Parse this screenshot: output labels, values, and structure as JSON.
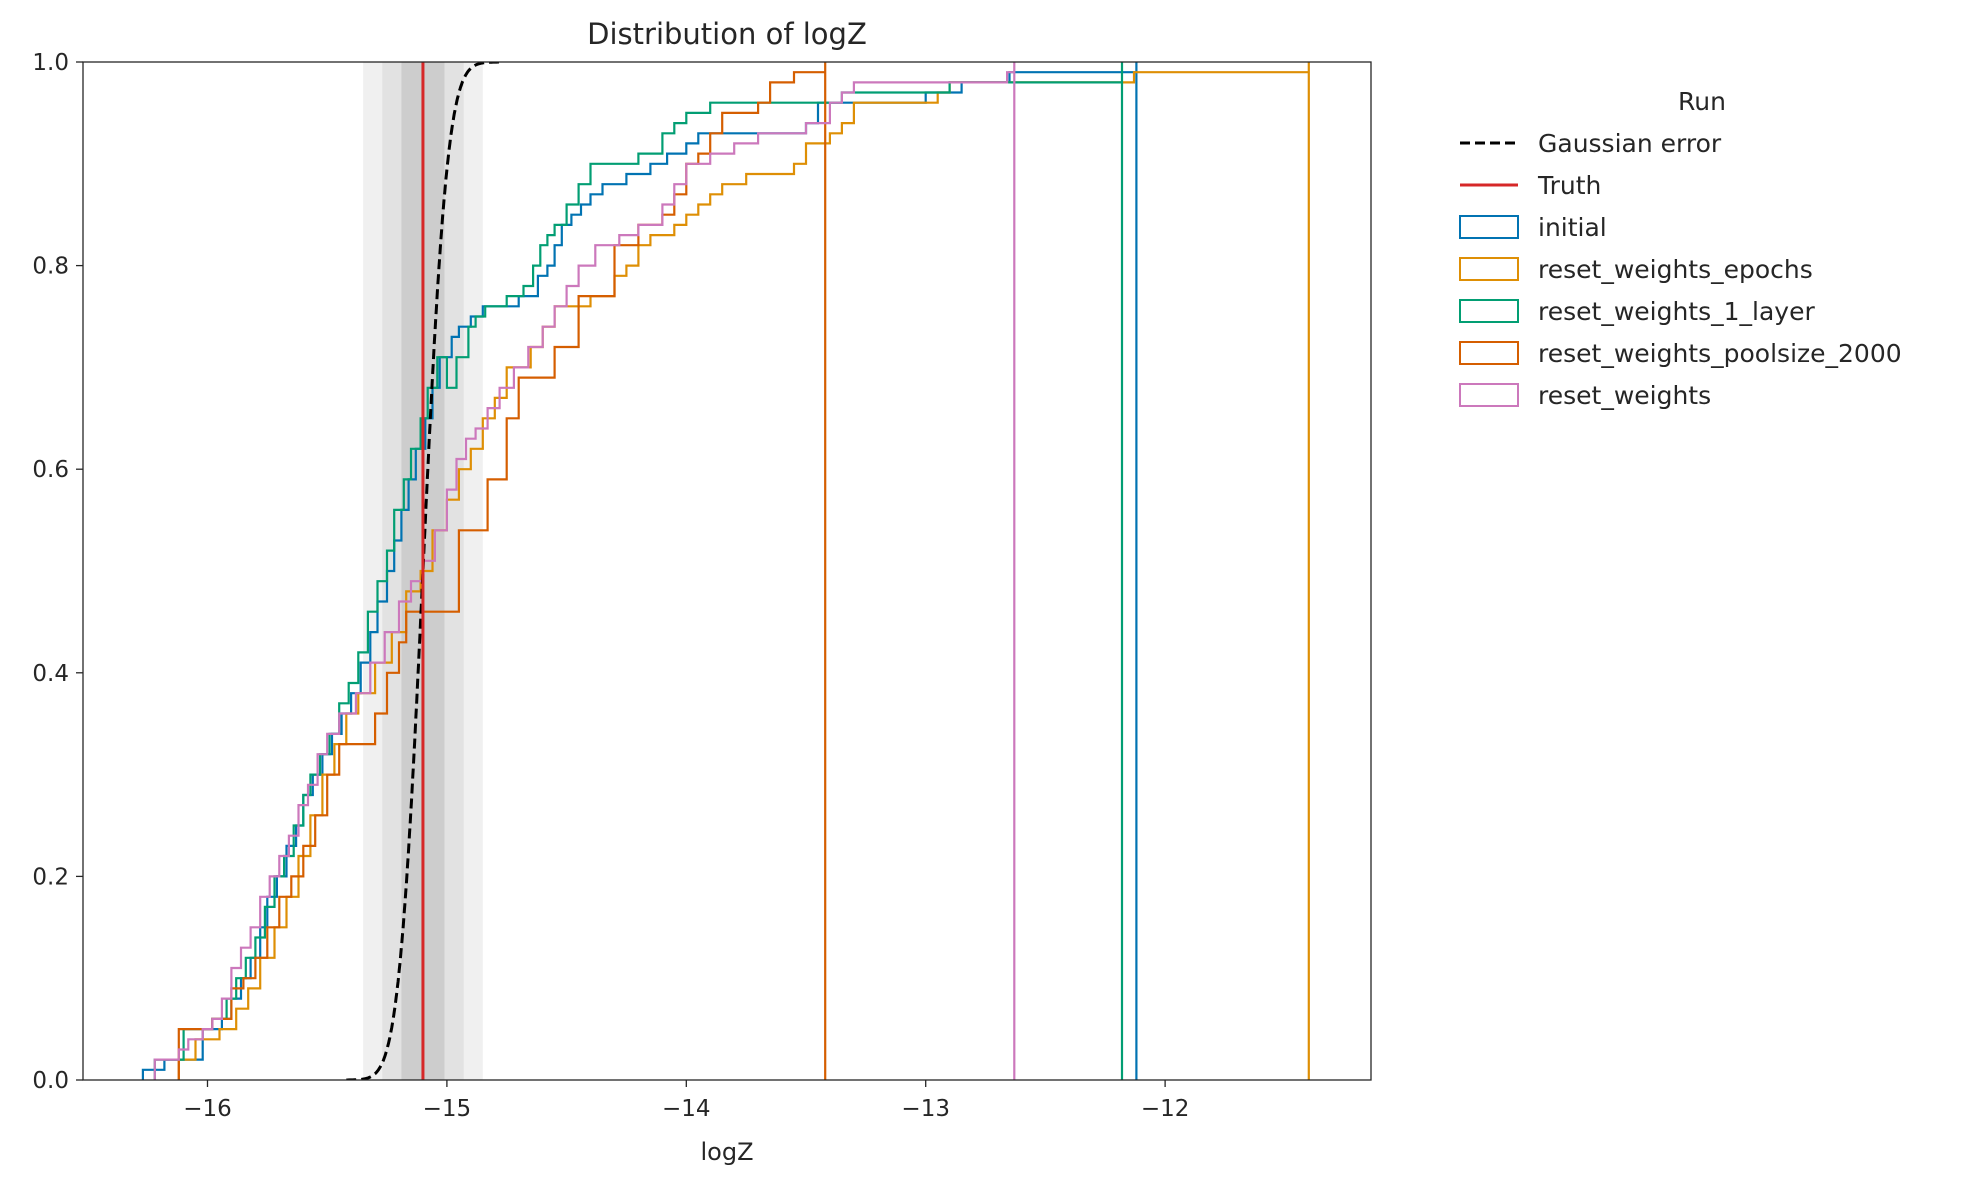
{
  "chart_data": {
    "type": "ecdf",
    "title": "Distribution of logZ",
    "xlabel": "logZ",
    "ylabel": "",
    "xlim": [
      -16.52,
      -11.14
    ],
    "ylim": [
      0.0,
      1.0
    ],
    "x_ticks": [
      -16,
      -15,
      -14,
      -13,
      -12
    ],
    "x_tick_labels": [
      "−16",
      "−15",
      "−14",
      "−13",
      "−12"
    ],
    "y_ticks": [
      0.0,
      0.2,
      0.4,
      0.6,
      0.8,
      1.0
    ],
    "y_tick_labels": [
      "0.0",
      "0.2",
      "0.4",
      "0.6",
      "0.8",
      "1.0"
    ],
    "truth": {
      "name": "Truth",
      "value": -15.1,
      "color": "#d62728"
    },
    "gaussian_error": {
      "name": "Gaussian error",
      "mean": -15.1,
      "sigma": 0.08,
      "color": "#000000"
    },
    "shaded_bands": [
      {
        "x0": -15.35,
        "x1": -14.85,
        "shade": "#f0f0f0"
      },
      {
        "x0": -15.27,
        "x1": -14.93,
        "shade": "#e2e2e2"
      },
      {
        "x0": -15.19,
        "x1": -15.01,
        "shade": "#cdcdcd"
      }
    ],
    "legend": {
      "title": "Run",
      "position": "outside-right"
    },
    "series": [
      {
        "name": "initial",
        "color": "#0173b2",
        "steps": [
          [
            -16.27,
            0.0
          ],
          [
            -16.27,
            0.01
          ],
          [
            -16.18,
            0.02
          ],
          [
            -16.02,
            0.05
          ],
          [
            -15.94,
            0.06
          ],
          [
            -15.9,
            0.08
          ],
          [
            -15.86,
            0.1
          ],
          [
            -15.82,
            0.12
          ],
          [
            -15.78,
            0.15
          ],
          [
            -15.75,
            0.18
          ],
          [
            -15.71,
            0.2
          ],
          [
            -15.67,
            0.23
          ],
          [
            -15.63,
            0.25
          ],
          [
            -15.6,
            0.28
          ],
          [
            -15.56,
            0.3
          ],
          [
            -15.52,
            0.32
          ],
          [
            -15.48,
            0.34
          ],
          [
            -15.44,
            0.36
          ],
          [
            -15.4,
            0.38
          ],
          [
            -15.36,
            0.41
          ],
          [
            -15.32,
            0.44
          ],
          [
            -15.29,
            0.47
          ],
          [
            -15.25,
            0.5
          ],
          [
            -15.22,
            0.53
          ],
          [
            -15.19,
            0.56
          ],
          [
            -15.16,
            0.59
          ],
          [
            -15.13,
            0.62
          ],
          [
            -15.09,
            0.65
          ],
          [
            -15.06,
            0.68
          ],
          [
            -15.03,
            0.71
          ],
          [
            -14.98,
            0.73
          ],
          [
            -14.95,
            0.74
          ],
          [
            -14.9,
            0.75
          ],
          [
            -14.85,
            0.76
          ],
          [
            -14.7,
            0.77
          ],
          [
            -14.62,
            0.79
          ],
          [
            -14.58,
            0.8
          ],
          [
            -14.55,
            0.82
          ],
          [
            -14.52,
            0.84
          ],
          [
            -14.48,
            0.85
          ],
          [
            -14.44,
            0.86
          ],
          [
            -14.4,
            0.87
          ],
          [
            -14.35,
            0.88
          ],
          [
            -14.25,
            0.89
          ],
          [
            -14.15,
            0.9
          ],
          [
            -14.08,
            0.91
          ],
          [
            -14.0,
            0.92
          ],
          [
            -13.95,
            0.93
          ],
          [
            -13.5,
            0.94
          ],
          [
            -13.45,
            0.96
          ],
          [
            -13.0,
            0.97
          ],
          [
            -12.85,
            0.98
          ],
          [
            -12.65,
            0.99
          ],
          [
            -12.12,
            1.0
          ]
        ]
      },
      {
        "name": "reset_weights_epochs",
        "color": "#de8f05",
        "steps": [
          [
            -16.12,
            0.0
          ],
          [
            -16.12,
            0.02
          ],
          [
            -16.05,
            0.04
          ],
          [
            -15.95,
            0.05
          ],
          [
            -15.88,
            0.07
          ],
          [
            -15.83,
            0.09
          ],
          [
            -15.78,
            0.12
          ],
          [
            -15.72,
            0.15
          ],
          [
            -15.67,
            0.18
          ],
          [
            -15.62,
            0.22
          ],
          [
            -15.57,
            0.26
          ],
          [
            -15.52,
            0.3
          ],
          [
            -15.47,
            0.33
          ],
          [
            -15.42,
            0.36
          ],
          [
            -15.37,
            0.38
          ],
          [
            -15.3,
            0.41
          ],
          [
            -15.23,
            0.44
          ],
          [
            -15.17,
            0.48
          ],
          [
            -15.11,
            0.5
          ],
          [
            -15.06,
            0.54
          ],
          [
            -15.0,
            0.57
          ],
          [
            -14.95,
            0.6
          ],
          [
            -14.9,
            0.62
          ],
          [
            -14.85,
            0.65
          ],
          [
            -14.8,
            0.67
          ],
          [
            -14.75,
            0.7
          ],
          [
            -14.65,
            0.72
          ],
          [
            -14.6,
            0.74
          ],
          [
            -14.55,
            0.76
          ],
          [
            -14.4,
            0.77
          ],
          [
            -14.3,
            0.79
          ],
          [
            -14.25,
            0.8
          ],
          [
            -14.2,
            0.82
          ],
          [
            -14.15,
            0.83
          ],
          [
            -14.05,
            0.84
          ],
          [
            -14.0,
            0.85
          ],
          [
            -13.95,
            0.86
          ],
          [
            -13.9,
            0.87
          ],
          [
            -13.85,
            0.88
          ],
          [
            -13.75,
            0.89
          ],
          [
            -13.55,
            0.9
          ],
          [
            -13.5,
            0.92
          ],
          [
            -13.4,
            0.93
          ],
          [
            -13.35,
            0.94
          ],
          [
            -13.3,
            0.96
          ],
          [
            -12.95,
            0.97
          ],
          [
            -12.9,
            0.98
          ],
          [
            -12.13,
            0.99
          ],
          [
            -11.4,
            1.0
          ]
        ]
      },
      {
        "name": "reset_weights_1_layer",
        "color": "#029e73",
        "steps": [
          [
            -16.22,
            0.0
          ],
          [
            -16.22,
            0.02
          ],
          [
            -16.1,
            0.05
          ],
          [
            -15.98,
            0.06
          ],
          [
            -15.92,
            0.08
          ],
          [
            -15.88,
            0.1
          ],
          [
            -15.84,
            0.12
          ],
          [
            -15.8,
            0.14
          ],
          [
            -15.76,
            0.17
          ],
          [
            -15.72,
            0.2
          ],
          [
            -15.68,
            0.22
          ],
          [
            -15.64,
            0.25
          ],
          [
            -15.6,
            0.28
          ],
          [
            -15.57,
            0.3
          ],
          [
            -15.53,
            0.32
          ],
          [
            -15.49,
            0.34
          ],
          [
            -15.45,
            0.37
          ],
          [
            -15.41,
            0.39
          ],
          [
            -15.37,
            0.42
          ],
          [
            -15.33,
            0.46
          ],
          [
            -15.29,
            0.49
          ],
          [
            -15.25,
            0.52
          ],
          [
            -15.22,
            0.56
          ],
          [
            -15.18,
            0.59
          ],
          [
            -15.15,
            0.62
          ],
          [
            -15.11,
            0.65
          ],
          [
            -15.08,
            0.68
          ],
          [
            -15.04,
            0.71
          ],
          [
            -15.0,
            0.68
          ],
          [
            -14.96,
            0.71
          ],
          [
            -14.91,
            0.74
          ],
          [
            -14.88,
            0.75
          ],
          [
            -14.84,
            0.76
          ],
          [
            -14.75,
            0.77
          ],
          [
            -14.68,
            0.78
          ],
          [
            -14.64,
            0.8
          ],
          [
            -14.61,
            0.82
          ],
          [
            -14.58,
            0.83
          ],
          [
            -14.55,
            0.84
          ],
          [
            -14.5,
            0.86
          ],
          [
            -14.45,
            0.88
          ],
          [
            -14.4,
            0.9
          ],
          [
            -14.2,
            0.91
          ],
          [
            -14.1,
            0.93
          ],
          [
            -14.05,
            0.94
          ],
          [
            -14.0,
            0.95
          ],
          [
            -13.9,
            0.96
          ],
          [
            -13.35,
            0.97
          ],
          [
            -12.9,
            0.98
          ],
          [
            -12.18,
            1.0
          ]
        ]
      },
      {
        "name": "reset_weights_poolsize_2000",
        "color": "#d55e00",
        "steps": [
          [
            -16.12,
            0.0
          ],
          [
            -16.12,
            0.05
          ],
          [
            -15.98,
            0.06
          ],
          [
            -15.9,
            0.09
          ],
          [
            -15.85,
            0.1
          ],
          [
            -15.8,
            0.12
          ],
          [
            -15.75,
            0.15
          ],
          [
            -15.7,
            0.18
          ],
          [
            -15.65,
            0.2
          ],
          [
            -15.6,
            0.23
          ],
          [
            -15.55,
            0.26
          ],
          [
            -15.5,
            0.3
          ],
          [
            -15.45,
            0.33
          ],
          [
            -15.3,
            0.36
          ],
          [
            -15.25,
            0.4
          ],
          [
            -15.2,
            0.43
          ],
          [
            -15.17,
            0.46
          ],
          [
            -14.95,
            0.54
          ],
          [
            -14.83,
            0.59
          ],
          [
            -14.75,
            0.65
          ],
          [
            -14.7,
            0.69
          ],
          [
            -14.55,
            0.72
          ],
          [
            -14.45,
            0.77
          ],
          [
            -14.3,
            0.82
          ],
          [
            -14.2,
            0.84
          ],
          [
            -14.1,
            0.85
          ],
          [
            -14.05,
            0.87
          ],
          [
            -14.0,
            0.9
          ],
          [
            -13.95,
            0.91
          ],
          [
            -13.9,
            0.93
          ],
          [
            -13.85,
            0.95
          ],
          [
            -13.7,
            0.96
          ],
          [
            -13.65,
            0.98
          ],
          [
            -13.55,
            0.99
          ],
          [
            -13.42,
            1.0
          ]
        ]
      },
      {
        "name": "reset_weights",
        "color": "#cc78bc",
        "steps": [
          [
            -16.22,
            0.0
          ],
          [
            -16.22,
            0.02
          ],
          [
            -16.12,
            0.03
          ],
          [
            -16.08,
            0.04
          ],
          [
            -16.02,
            0.05
          ],
          [
            -15.98,
            0.06
          ],
          [
            -15.94,
            0.08
          ],
          [
            -15.9,
            0.11
          ],
          [
            -15.86,
            0.13
          ],
          [
            -15.82,
            0.15
          ],
          [
            -15.78,
            0.18
          ],
          [
            -15.74,
            0.2
          ],
          [
            -15.7,
            0.22
          ],
          [
            -15.66,
            0.24
          ],
          [
            -15.62,
            0.27
          ],
          [
            -15.58,
            0.29
          ],
          [
            -15.54,
            0.32
          ],
          [
            -15.5,
            0.34
          ],
          [
            -15.45,
            0.36
          ],
          [
            -15.38,
            0.38
          ],
          [
            -15.32,
            0.41
          ],
          [
            -15.26,
            0.44
          ],
          [
            -15.2,
            0.47
          ],
          [
            -15.15,
            0.49
          ],
          [
            -15.1,
            0.51
          ],
          [
            -15.05,
            0.54
          ],
          [
            -15.0,
            0.58
          ],
          [
            -14.96,
            0.61
          ],
          [
            -14.92,
            0.63
          ],
          [
            -14.88,
            0.64
          ],
          [
            -14.83,
            0.66
          ],
          [
            -14.78,
            0.68
          ],
          [
            -14.72,
            0.7
          ],
          [
            -14.66,
            0.72
          ],
          [
            -14.6,
            0.74
          ],
          [
            -14.55,
            0.76
          ],
          [
            -14.5,
            0.78
          ],
          [
            -14.45,
            0.8
          ],
          [
            -14.38,
            0.82
          ],
          [
            -14.28,
            0.83
          ],
          [
            -14.2,
            0.84
          ],
          [
            -14.1,
            0.86
          ],
          [
            -14.05,
            0.88
          ],
          [
            -14.0,
            0.9
          ],
          [
            -13.9,
            0.91
          ],
          [
            -13.8,
            0.92
          ],
          [
            -13.7,
            0.93
          ],
          [
            -13.5,
            0.94
          ],
          [
            -13.4,
            0.96
          ],
          [
            -13.35,
            0.97
          ],
          [
            -13.3,
            0.98
          ],
          [
            -12.66,
            0.99
          ],
          [
            -12.63,
            1.0
          ]
        ]
      }
    ]
  }
}
